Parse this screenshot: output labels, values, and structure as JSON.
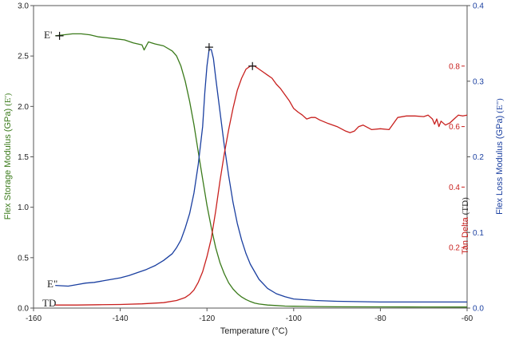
{
  "chart_data": {
    "type": "line",
    "xlabel": "Temperature (°C)",
    "x_ticks": [
      "-160",
      "-140",
      "-120",
      "-100",
      "-80",
      "-60"
    ],
    "xlim": [
      -160,
      -60
    ],
    "axes": {
      "left": {
        "label_prefix": "Flex Storage Modulus (GPa)",
        "label_suffix": "(E')",
        "color": "#3a7a1a",
        "ylim": [
          0,
          3.0
        ],
        "ticks": [
          "0.0",
          "0.5",
          "1.0",
          "1.5",
          "2.0",
          "2.5",
          "3.0"
        ]
      },
      "tan_delta": {
        "label_prefix": "Tan Delta",
        "label_suffix": "(TD)",
        "color": "#c8201e",
        "ylim": [
          0,
          1.0
        ],
        "ticks": [
          "0.2",
          "0.4",
          "0.6",
          "0.8"
        ]
      },
      "right": {
        "label_prefix": "Flex Loss Modulus (GPa)",
        "label_suffix": "(E\")",
        "color": "#1a3fa0",
        "ylim": [
          0,
          0.4
        ],
        "ticks": [
          "0.0",
          "0.1",
          "0.2",
          "0.3",
          "0.4"
        ]
      }
    },
    "series": [
      {
        "label": "E'",
        "axis": "left",
        "color": "#3a7a1a",
        "x": [
          -155,
          -153,
          -151,
          -149,
          -147,
          -145,
          -143,
          -141,
          -139,
          -137,
          -135,
          -134.5,
          -133.5,
          -132,
          -130,
          -128,
          -127,
          -126,
          -125,
          -124,
          -123,
          -122,
          -121,
          -120,
          -119,
          -118,
          -117,
          -116,
          -115,
          -114,
          -113,
          -112,
          -111,
          -110,
          -109,
          -108,
          -106,
          -104,
          -102,
          -100,
          -95,
          -90,
          -80,
          -70,
          -60
        ],
        "y": [
          2.7,
          2.71,
          2.72,
          2.72,
          2.71,
          2.69,
          2.68,
          2.67,
          2.66,
          2.63,
          2.61,
          2.56,
          2.64,
          2.62,
          2.6,
          2.55,
          2.5,
          2.4,
          2.25,
          2.05,
          1.82,
          1.55,
          1.28,
          1.02,
          0.8,
          0.6,
          0.45,
          0.34,
          0.25,
          0.19,
          0.145,
          0.11,
          0.085,
          0.065,
          0.05,
          0.04,
          0.03,
          0.025,
          0.02,
          0.018,
          0.015,
          0.013,
          0.012,
          0.011,
          0.01
        ]
      },
      {
        "label": "E\"",
        "axis": "right",
        "color": "#1a3fa0",
        "x": [
          -155,
          -152,
          -150,
          -148,
          -146,
          -144,
          -142,
          -140,
          -138,
          -136,
          -134,
          -132,
          -130,
          -128,
          -127,
          -126,
          -125,
          -124,
          -123,
          -122,
          -121,
          -120.5,
          -120,
          -119.5,
          -119,
          -118.5,
          -118,
          -117,
          -116,
          -115,
          -114,
          -113,
          -112,
          -111,
          -110,
          -108,
          -106,
          -104,
          -102,
          -100,
          -95,
          -90,
          -80,
          -70,
          -60
        ],
        "y": [
          0.03,
          0.029,
          0.031,
          0.033,
          0.034,
          0.036,
          0.038,
          0.04,
          0.043,
          0.047,
          0.051,
          0.056,
          0.063,
          0.072,
          0.08,
          0.09,
          0.106,
          0.125,
          0.152,
          0.19,
          0.24,
          0.285,
          0.32,
          0.342,
          0.342,
          0.33,
          0.305,
          0.26,
          0.215,
          0.175,
          0.14,
          0.112,
          0.09,
          0.072,
          0.058,
          0.038,
          0.026,
          0.019,
          0.015,
          0.012,
          0.01,
          0.009,
          0.008,
          0.008,
          0.008
        ]
      },
      {
        "label": "TD",
        "axis": "tan_delta",
        "color": "#c8201e",
        "x": [
          -155,
          -150,
          -145,
          -140,
          -135,
          -130,
          -127,
          -125,
          -124,
          -123,
          -122,
          -121,
          -120,
          -119,
          -118,
          -117,
          -116,
          -115,
          -114,
          -113,
          -112,
          -111,
          -110,
          -109,
          -108,
          -107,
          -106,
          -105,
          -104,
          -103,
          -102,
          -101,
          -100,
          -99,
          -98,
          -97,
          -96,
          -95,
          -94,
          -92,
          -90,
          -88,
          -87,
          -86,
          -85,
          -84,
          -82,
          -80,
          -78,
          -76,
          -74,
          -72,
          -70,
          -69,
          -68,
          -67.5,
          -67,
          -66.5,
          -66,
          -65,
          -64,
          -63,
          -62,
          -61,
          -60
        ],
        "y": [
          0.01,
          0.01,
          0.011,
          0.012,
          0.014,
          0.018,
          0.025,
          0.035,
          0.045,
          0.06,
          0.085,
          0.12,
          0.17,
          0.23,
          0.32,
          0.42,
          0.51,
          0.59,
          0.66,
          0.72,
          0.76,
          0.79,
          0.8,
          0.8,
          0.79,
          0.78,
          0.77,
          0.76,
          0.74,
          0.725,
          0.705,
          0.685,
          0.66,
          0.648,
          0.638,
          0.625,
          0.63,
          0.63,
          0.622,
          0.61,
          0.6,
          0.585,
          0.58,
          0.585,
          0.6,
          0.605,
          0.59,
          0.593,
          0.59,
          0.63,
          0.635,
          0.635,
          0.633,
          0.638,
          0.625,
          0.608,
          0.625,
          0.6,
          0.618,
          0.605,
          0.612,
          0.625,
          0.638,
          0.635,
          0.638
        ]
      }
    ],
    "peaks": [
      {
        "series": "E'",
        "x": -154,
        "y": 2.7
      },
      {
        "series": "E\"",
        "x": -119.5,
        "y": 0.345
      },
      {
        "series": "TD",
        "x": -109.5,
        "y": 0.8
      }
    ],
    "grid": false,
    "legend": "inline-left"
  }
}
